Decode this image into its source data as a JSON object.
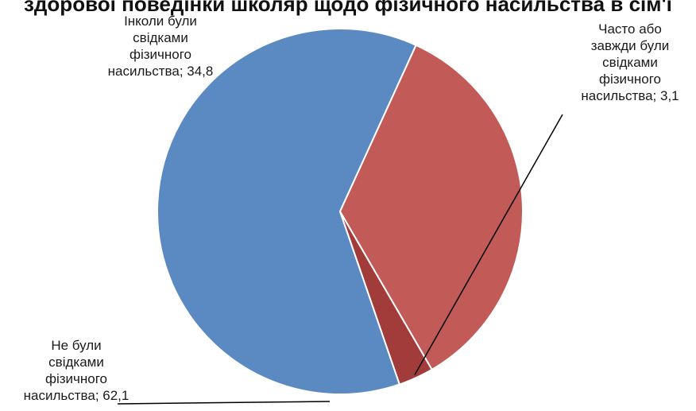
{
  "chart_data": {
    "type": "pie",
    "title": "",
    "title_fragment": "здорової поведінки школяр щодо фізичного насильства в сім'ї",
    "slices": [
      {
        "label": "Не були свідками фізичного насильства",
        "value": 62.1,
        "display": "62,1",
        "color": "#5B8AC2"
      },
      {
        "label": "Інколи були свідками фізичного насильства",
        "value": 34.8,
        "display": "34,8",
        "color": "#C25B57"
      },
      {
        "label": "Часто або завжди були свідками фізичного насильства",
        "value": 3.1,
        "display": "3,1",
        "color": "#A23C3A"
      }
    ],
    "label_lines": [
      [
        "Не були",
        "свідками",
        "фізичного",
        "насильства; 62,1"
      ],
      [
        "Інколи були",
        "свідками",
        "фізичного",
        "насильства; 34,8"
      ],
      [
        "Часто або",
        "завжди були",
        "свідками",
        "фізичного",
        "насильства; 3,1"
      ]
    ],
    "legend": "none",
    "grid": false
  }
}
